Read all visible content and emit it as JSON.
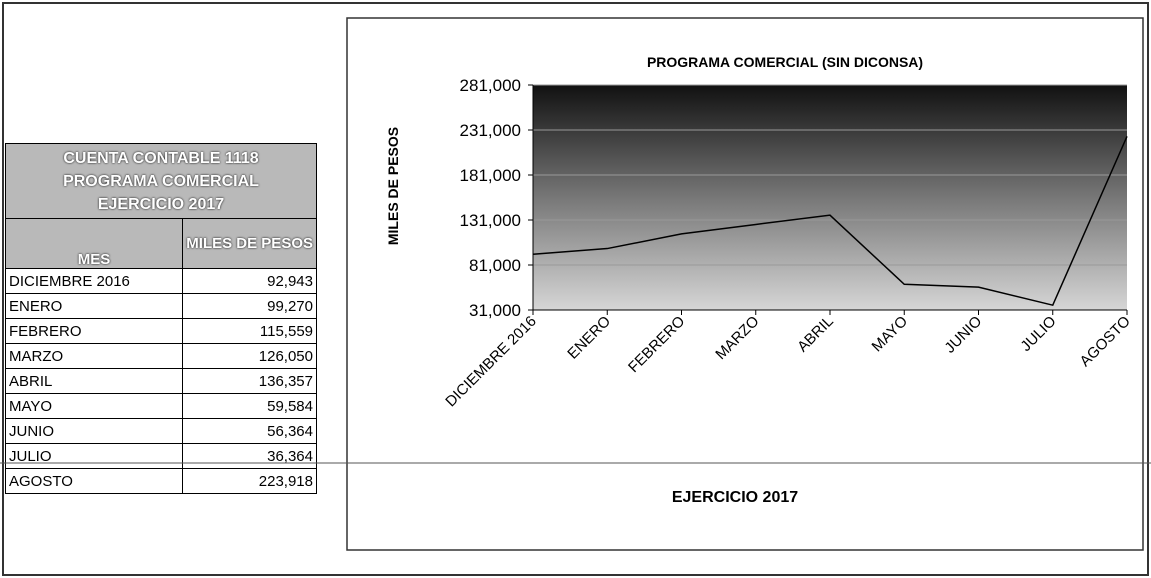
{
  "table": {
    "title": [
      "CUENTA CONTABLE 1118",
      "PROGRAMA COMERCIAL",
      "EJERCICIO 2017"
    ],
    "columns": [
      "MES",
      "MILES DE PESOS"
    ],
    "rows": [
      [
        "DICIEMBRE 2016",
        "92,943"
      ],
      [
        "ENERO",
        "99,270"
      ],
      [
        "FEBRERO",
        "115,559"
      ],
      [
        "MARZO",
        "126,050"
      ],
      [
        "ABRIL",
        "136,357"
      ],
      [
        "MAYO",
        "59,584"
      ],
      [
        "JUNIO",
        "56,364"
      ],
      [
        "JULIO",
        "36,364"
      ],
      [
        "AGOSTO",
        "223,918"
      ]
    ]
  },
  "chart_data": {
    "type": "line",
    "title": "PROGRAMA COMERCIAL (SIN DICONSA)",
    "y_label": "MILES DE PESOS",
    "x_label": "EJERCICIO 2017",
    "categories": [
      "DICIEMBRE 2016",
      "ENERO",
      "FEBRERO",
      "MARZO",
      "ABRIL",
      "MAYO",
      "JUNIO",
      "JULIO",
      "AGOSTO"
    ],
    "values": [
      92943,
      99270,
      115559,
      126050,
      136357,
      59584,
      56364,
      36364,
      223918
    ],
    "color": "#000000",
    "ylim": [
      31000,
      281000
    ],
    "yticks": [
      {
        "value": 31000,
        "label": "31,000"
      },
      {
        "value": 81000,
        "label": "81,000"
      },
      {
        "value": 131000,
        "label": "131,000"
      },
      {
        "value": 181000,
        "label": "181,000"
      },
      {
        "value": 231000,
        "label": "231,000"
      },
      {
        "value": 281000,
        "label": "281,000"
      }
    ]
  }
}
